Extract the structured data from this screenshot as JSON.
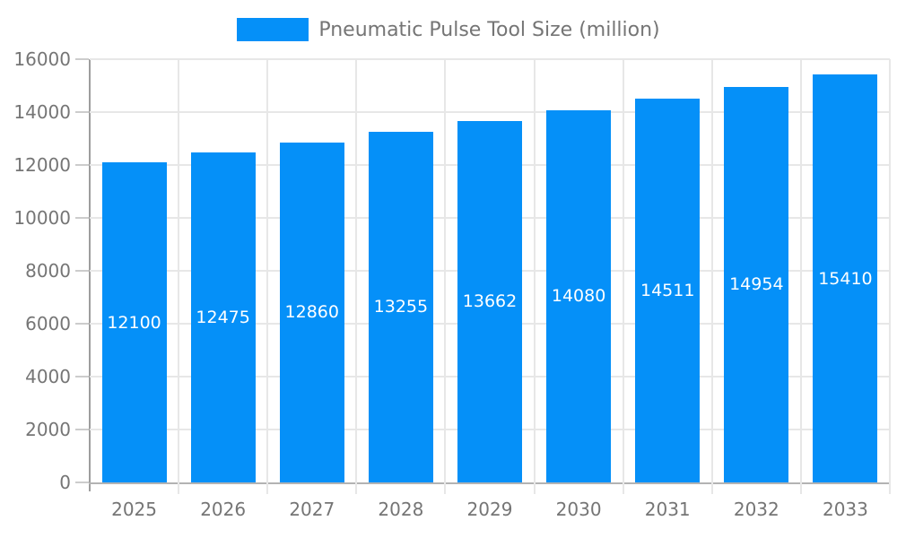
{
  "legend": {
    "label": "Pneumatic Pulse Tool Size (million)",
    "position": "top-center"
  },
  "chart_data": {
    "type": "bar",
    "title": "Pneumatic Pulse Tool Size (million)",
    "categories": [
      "2025",
      "2026",
      "2027",
      "2028",
      "2029",
      "2030",
      "2031",
      "2032",
      "2033"
    ],
    "values": [
      12100,
      12475,
      12860,
      13255,
      13662,
      14080,
      14511,
      14954,
      15410
    ],
    "series_name": "Pneumatic Pulse Tool Size (million)",
    "xlabel": "",
    "ylabel": "",
    "ylim": [
      0,
      16000
    ],
    "yticks": [
      0,
      2000,
      4000,
      6000,
      8000,
      10000,
      12000,
      14000,
      16000
    ],
    "grid": true,
    "bar_value_labels_visible": true,
    "legend_position": "top-center",
    "colors": {
      "bar": "#0590f8",
      "bar_label": "#ffffff",
      "axis_text": "#757575",
      "grid_line": "#e7e7e7",
      "tick_line": "#cccccc",
      "axis_line": "#b3b3b3",
      "y_axis_line": "#9e9e9e"
    }
  }
}
